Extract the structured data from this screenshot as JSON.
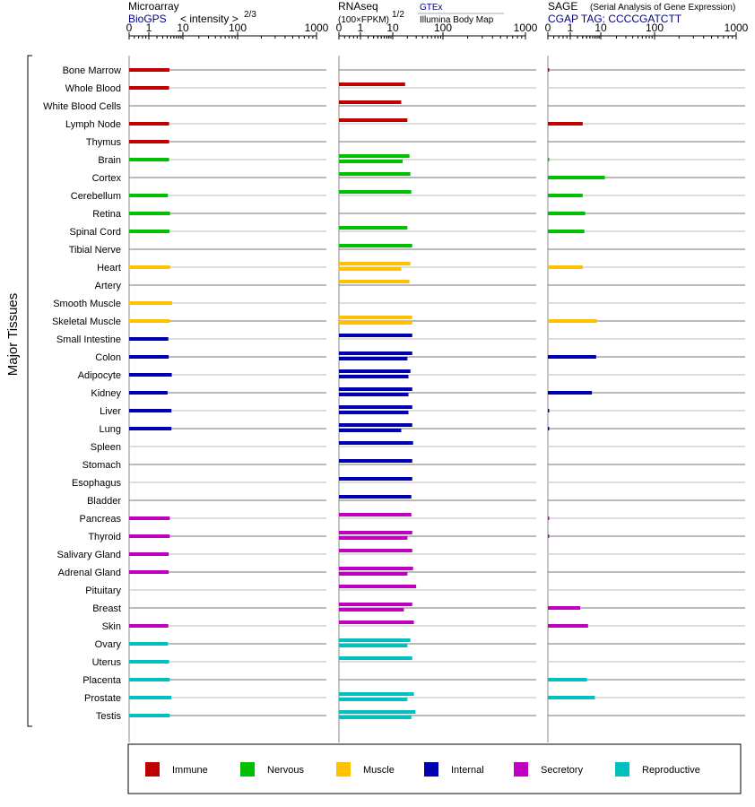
{
  "headers": {
    "microarray": {
      "title": "Microarray",
      "source": "BioGPS",
      "unit": "< intensity >",
      "exponent": "2/3"
    },
    "rnaseq": {
      "title": "RNAseq",
      "unit": "(100×FPKM)",
      "exponent": "1/2",
      "source1": "GTEx",
      "source2": "Illumina Body Map"
    },
    "sage": {
      "title": "SAGE",
      "subtitle": "(Serial Analysis of Gene Expression)",
      "tag": "CGAP TAG: CCCCGATCTT"
    }
  },
  "ylabel": "Major Tissues",
  "legend": [
    {
      "label": "Immune",
      "color": "#c00000"
    },
    {
      "label": "Nervous",
      "color": "#00c000"
    },
    {
      "label": "Muscle",
      "color": "#ffc000"
    },
    {
      "label": "Internal",
      "color": "#0000b0"
    },
    {
      "label": "Secretory",
      "color": "#c000c0"
    },
    {
      "label": "Reproductive",
      "color": "#00c0c0"
    }
  ],
  "chart_data": [
    {
      "type": "bar",
      "title": "Microarray",
      "xscale": "power 2/3",
      "ticks": [
        "0",
        "1",
        "10",
        "100",
        "1000"
      ],
      "xlim": [
        0,
        1000
      ],
      "categories": [
        "Bone Marrow",
        "Whole Blood",
        "White Blood Cells",
        "Lymph Node",
        "Thymus",
        "Brain",
        "Cortex",
        "Cerebellum",
        "Retina",
        "Spinal Cord",
        "Tibial Nerve",
        "Heart",
        "Artery",
        "Smooth Muscle",
        "Skeletal Muscle",
        "Small Intestine",
        "Colon",
        "Adipocyte",
        "Kidney",
        "Liver",
        "Lung",
        "Spleen",
        "Stomach",
        "Esophagus",
        "Bladder",
        "Pancreas",
        "Thyroid",
        "Salivary Gland",
        "Adrenal Gland",
        "Pituitary",
        "Breast",
        "Skin",
        "Ovary",
        "Uterus",
        "Placenta",
        "Prostate",
        "Testis"
      ],
      "groups": [
        "Immune",
        "Immune",
        "Immune",
        "Immune",
        "Immune",
        "Nervous",
        "Nervous",
        "Nervous",
        "Nervous",
        "Nervous",
        "Nervous",
        "Muscle",
        "Muscle",
        "Muscle",
        "Muscle",
        "Internal",
        "Internal",
        "Internal",
        "Internal",
        "Internal",
        "Internal",
        "Internal",
        "Internal",
        "Internal",
        "Internal",
        "Secretory",
        "Secretory",
        "Secretory",
        "Secretory",
        "Secretory",
        "Secretory",
        "Secretory",
        "Reproductive",
        "Reproductive",
        "Reproductive",
        "Reproductive",
        "Reproductive"
      ],
      "series": [
        {
          "values": [
            4.6,
            4.5,
            null,
            4.5,
            4.5,
            4.5,
            null,
            4.2,
            4.8,
            4.6,
            null,
            4.8,
            null,
            5.4,
            4.7,
            4.3,
            4.4,
            5.3,
            4.1,
            5.2,
            5.2,
            null,
            null,
            null,
            null,
            4.7,
            4.7,
            4.4,
            4.4,
            null,
            null,
            4.3,
            4.2,
            4.5,
            4.7,
            5.2,
            4.7
          ]
        }
      ]
    },
    {
      "type": "bar",
      "title": "RNAseq",
      "xscale": "power 1/2",
      "ticks": [
        "0",
        "1",
        "10",
        "100",
        "1000"
      ],
      "xlim": [
        0,
        1000
      ],
      "categories": [
        "Bone Marrow",
        "Whole Blood",
        "White Blood Cells",
        "Lymph Node",
        "Thymus",
        "Brain",
        "Cortex",
        "Cerebellum",
        "Retina",
        "Spinal Cord",
        "Tibial Nerve",
        "Heart",
        "Artery",
        "Smooth Muscle",
        "Skeletal Muscle",
        "Small Intestine",
        "Colon",
        "Adipocyte",
        "Kidney",
        "Liver",
        "Lung",
        "Spleen",
        "Stomach",
        "Esophagus",
        "Bladder",
        "Pancreas",
        "Thyroid",
        "Salivary Gland",
        "Adrenal Gland",
        "Pituitary",
        "Breast",
        "Skin",
        "Ovary",
        "Uterus",
        "Placenta",
        "Prostate",
        "Testis"
      ],
      "series": [
        {
          "name": "GTEx",
          "values": [
            null,
            18,
            15,
            20,
            null,
            22,
            23,
            24,
            null,
            20,
            25,
            23,
            22,
            null,
            25,
            25,
            25,
            23,
            25,
            25,
            25,
            26,
            25,
            25,
            24,
            24,
            25,
            25,
            26,
            30,
            25,
            27,
            23,
            25,
            null,
            27,
            29
          ]
        },
        {
          "name": "Illumina Body Map",
          "values": [
            null,
            null,
            null,
            null,
            null,
            16,
            null,
            null,
            null,
            null,
            null,
            15,
            null,
            null,
            25,
            null,
            20,
            21,
            21,
            21,
            15,
            null,
            null,
            null,
            null,
            null,
            20,
            null,
            20,
            null,
            17,
            null,
            20,
            null,
            null,
            20,
            24
          ]
        }
      ]
    },
    {
      "type": "bar",
      "title": "SAGE",
      "xscale": "power 1/2",
      "ticks": [
        "0",
        "1",
        "10",
        "100",
        "1000"
      ],
      "xlim": [
        0,
        1000
      ],
      "categories": [
        "Bone Marrow",
        "Whole Blood",
        "White Blood Cells",
        "Lymph Node",
        "Thymus",
        "Brain",
        "Cortex",
        "Cerebellum",
        "Retina",
        "Spinal Cord",
        "Tibial Nerve",
        "Heart",
        "Artery",
        "Smooth Muscle",
        "Skeletal Muscle",
        "Small Intestine",
        "Colon",
        "Adipocyte",
        "Kidney",
        "Liver",
        "Lung",
        "Spleen",
        "Stomach",
        "Esophagus",
        "Bladder",
        "Pancreas",
        "Thyroid",
        "Salivary Gland",
        "Adrenal Gland",
        "Pituitary",
        "Breast",
        "Skin",
        "Ovary",
        "Uterus",
        "Placenta",
        "Prostate",
        "Testis"
      ],
      "series": [
        {
          "values": [
            0.01,
            null,
            null,
            3,
            null,
            0.01,
            12,
            3,
            3.6,
            3.4,
            null,
            3,
            null,
            null,
            7.7,
            null,
            7.5,
            null,
            5.7,
            0.01,
            0.01,
            null,
            null,
            null,
            null,
            0.01,
            0.01,
            null,
            null,
            null,
            2.5,
            4.4,
            null,
            null,
            4.1,
            6.9,
            null
          ]
        }
      ]
    }
  ]
}
